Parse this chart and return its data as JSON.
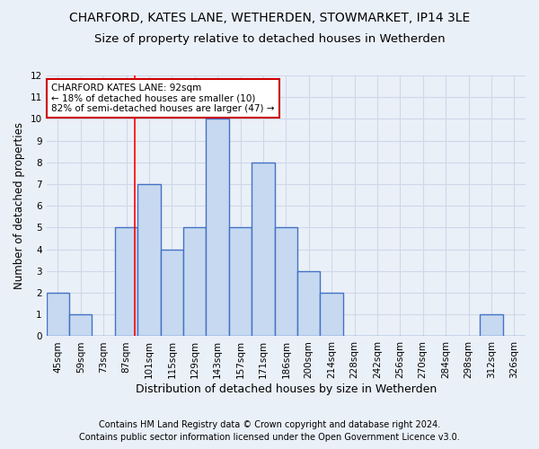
{
  "title": "CHARFORD, KATES LANE, WETHERDEN, STOWMARKET, IP14 3LE",
  "subtitle": "Size of property relative to detached houses in Wetherden",
  "xlabel": "Distribution of detached houses by size in Wetherden",
  "ylabel": "Number of detached properties",
  "categories": [
    "45sqm",
    "59sqm",
    "73sqm",
    "87sqm",
    "101sqm",
    "115sqm",
    "129sqm",
    "143sqm",
    "157sqm",
    "171sqm",
    "186sqm",
    "200sqm",
    "214sqm",
    "228sqm",
    "242sqm",
    "256sqm",
    "270sqm",
    "284sqm",
    "298sqm",
    "312sqm",
    "326sqm"
  ],
  "values": [
    2,
    1,
    0,
    5,
    7,
    4,
    5,
    10,
    5,
    8,
    5,
    3,
    2,
    0,
    0,
    0,
    0,
    0,
    0,
    1,
    0
  ],
  "bar_color": "#c6d9f0",
  "bar_edge_color": "#4472c4",
  "bar_linewidth": 1.0,
  "grid_color": "#d0d8e8",
  "background_color": "#eaf0f8",
  "annotation_text": "CHARFORD KATES LANE: 92sqm\n← 18% of detached houses are smaller (10)\n82% of semi-detached houses are larger (47) →",
  "annotation_box_color": "#ffffff",
  "annotation_box_edge": "#cc0000",
  "red_line_x": 3.36,
  "ylim": [
    0,
    12
  ],
  "yticks": [
    0,
    1,
    2,
    3,
    4,
    5,
    6,
    7,
    8,
    9,
    10,
    11,
    12
  ],
  "footer1": "Contains HM Land Registry data © Crown copyright and database right 2024.",
  "footer2": "Contains public sector information licensed under the Open Government Licence v3.0.",
  "title_fontsize": 10,
  "subtitle_fontsize": 9.5,
  "xlabel_fontsize": 9,
  "ylabel_fontsize": 8.5,
  "tick_fontsize": 7.5,
  "footer_fontsize": 7
}
